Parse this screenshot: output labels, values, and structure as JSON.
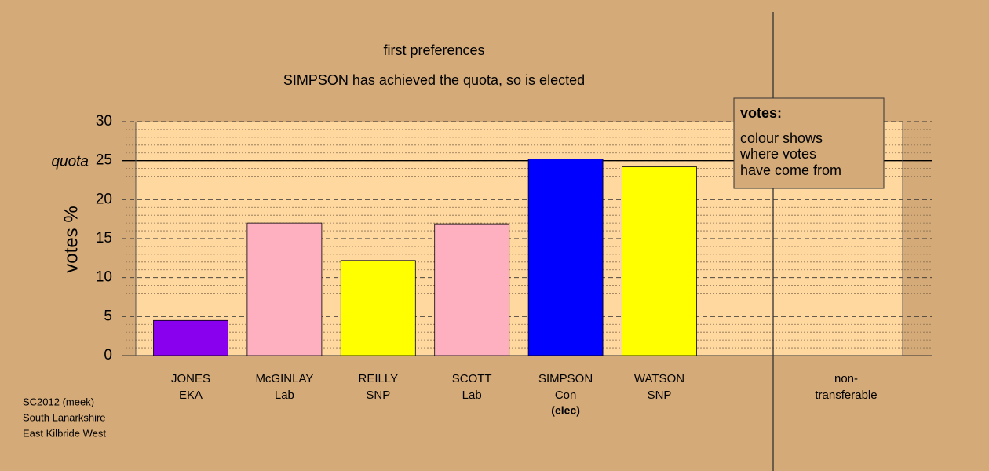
{
  "chart_data": {
    "type": "bar",
    "title": "first preferences",
    "subtitle": "SIMPSON has achieved the quota, so is elected",
    "y_label": "votes %",
    "categories": [
      "JONES",
      "McGINLAY",
      "REILLY",
      "SCOTT",
      "SIMPSON",
      "WATSON"
    ],
    "parties": [
      "EKA",
      "Lab",
      "SNP",
      "Lab",
      "Con",
      "SNP"
    ],
    "elected_note": {
      "index": 4,
      "text": "(elec)"
    },
    "values": [
      4.5,
      17.0,
      12.2,
      16.9,
      25.2,
      24.2
    ],
    "colors": [
      "#8800ee",
      "#ffb0c0",
      "#ffff00",
      "#ffb0c0",
      "#0000ff",
      "#ffff00"
    ],
    "nontransferable_label": [
      "non-",
      "transferable"
    ],
    "quota": 25,
    "quota_label": "quota",
    "ylim": [
      0,
      30
    ],
    "yticks": [
      0,
      5,
      10,
      15,
      20,
      25,
      30
    ],
    "minor_yticks": [
      1,
      2,
      3,
      4,
      6,
      7,
      8,
      9,
      11,
      12,
      13,
      14,
      16,
      17,
      18,
      19,
      21,
      22,
      23,
      24,
      26,
      27,
      28,
      29
    ],
    "grid": true,
    "legend": {
      "title": "votes:",
      "lines": [
        "colour shows",
        "where votes",
        "have come from"
      ]
    },
    "footer": [
      "SC2012 (meek)",
      "South Lanarkshire",
      "East Kilbride West"
    ]
  }
}
